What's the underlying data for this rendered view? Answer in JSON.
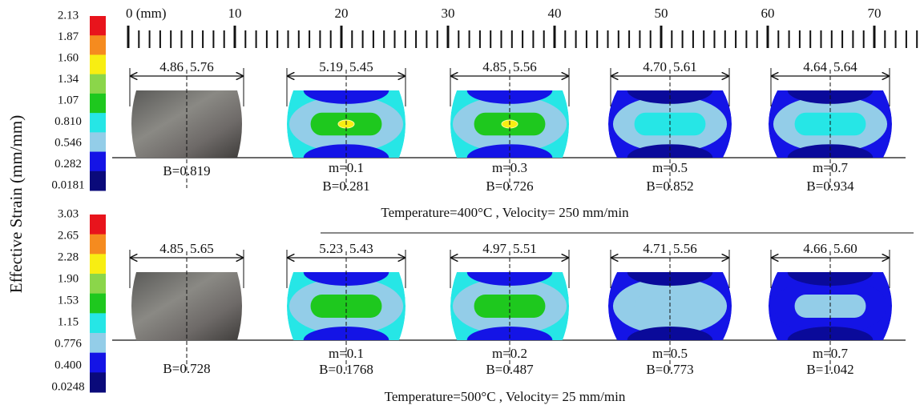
{
  "y_axis_label": "Effective Strain (mm/mm)",
  "ruler": {
    "labels": [
      "0 (mm)",
      "10",
      "20",
      "30",
      "40",
      "50",
      "60",
      "70"
    ]
  },
  "panels": [
    {
      "legend": [
        "2.13",
        "1.87",
        "1.60",
        "1.34",
        "1.07",
        "0.810",
        "0.546",
        "0.282",
        "0.0181"
      ],
      "samples": [
        {
          "left": "4.86",
          "right": "5.76",
          "lines": [
            "B=0.819"
          ]
        },
        {
          "left": "5.19",
          "right": "5.45",
          "lines": [
            "m=0.1",
            "B=0.281"
          ]
        },
        {
          "left": "4.85",
          "right": "5.56",
          "lines": [
            "m=0.3",
            "B=0.726"
          ]
        },
        {
          "left": "4.70",
          "right": "5.61",
          "lines": [
            "m=0.5",
            "B=0.852"
          ]
        },
        {
          "left": "4.64",
          "right": "5.64",
          "lines": [
            "m=0.7",
            "B=0.934"
          ]
        }
      ],
      "caption": "Temperature=400°C , Velocity= 250 mm/min"
    },
    {
      "legend": [
        "3.03",
        "2.65",
        "2.28",
        "1.90",
        "1.53",
        "1.15",
        "0.776",
        "0.400",
        "0.0248"
      ],
      "samples": [
        {
          "left": "4.85",
          "right": "5.65",
          "lines": [
            "B=0.728"
          ]
        },
        {
          "left": "5.23",
          "right": "5.43",
          "lines": [
            "m=0.1",
            "B=0.1768"
          ]
        },
        {
          "left": "4.97",
          "right": "5.51",
          "lines": [
            "m=0.2",
            "B=0.487"
          ]
        },
        {
          "left": "4.71",
          "right": "5.56",
          "lines": [
            "m=0.5",
            "B=0.773"
          ]
        },
        {
          "left": "4.66",
          "right": "5.60",
          "lines": [
            "m=0.7",
            "B=1.042"
          ]
        }
      ],
      "caption": "Temperature=500°C , Velocity= 25 mm/min"
    }
  ]
}
